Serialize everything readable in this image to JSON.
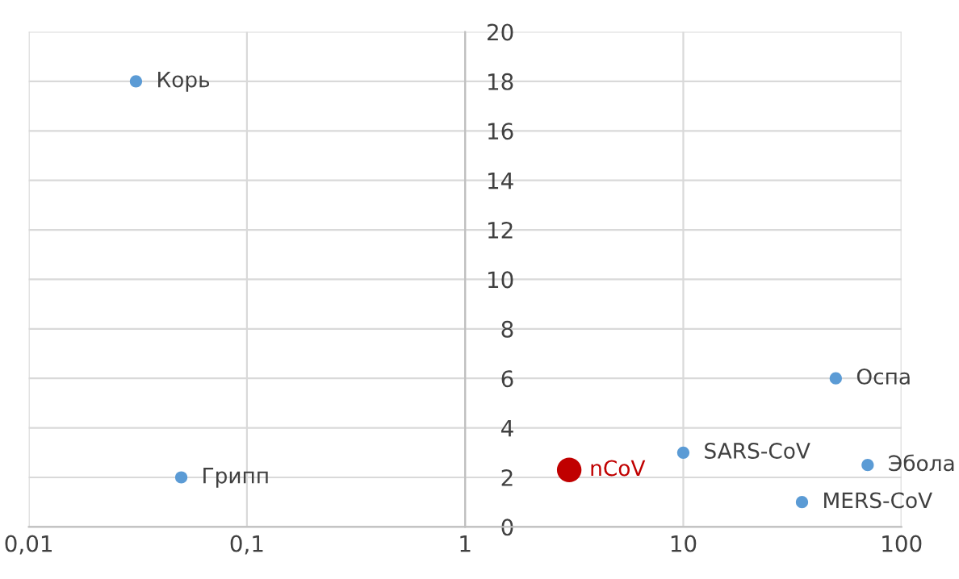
{
  "chart_data": {
    "type": "scatter",
    "log": "x",
    "series": [
      {
        "color": "#5b9bd5",
        "x": [
          0.031,
          0.05,
          10,
          50,
          70,
          35
        ],
        "values": [
          18,
          2,
          3,
          6,
          2.5,
          1
        ]
      },
      {
        "color": "#c00000",
        "x": [
          3
        ],
        "values": [
          2.3
        ]
      }
    ],
    "annotations": [
      {
        "text": "Корь",
        "x": 0.031,
        "y": 18
      },
      {
        "text": "Грипп",
        "x": 0.05,
        "y": 2
      },
      {
        "text": "SARS-CoV",
        "x": 10,
        "y": 3
      },
      {
        "text": "Оспа",
        "x": 50,
        "y": 6
      },
      {
        "text": "Эбола",
        "x": 70,
        "y": 2.5
      },
      {
        "text": "MERS-CoV",
        "x": 35,
        "y": 1
      },
      {
        "text": "nCoV",
        "x": 3,
        "y": 2.3
      }
    ],
    "xlim": [
      0.01,
      100
    ],
    "xticks": [
      {
        "value": 0.01,
        "label": "0,01"
      },
      {
        "value": 0.1,
        "label": "0,1"
      },
      1,
      10,
      100
    ],
    "ylim": [
      0,
      20
    ],
    "yticks": [
      0,
      2,
      4,
      6,
      8,
      10,
      12,
      14,
      16,
      18,
      20
    ],
    "grid": true,
    "marker": "circle",
    "legend": false
  }
}
